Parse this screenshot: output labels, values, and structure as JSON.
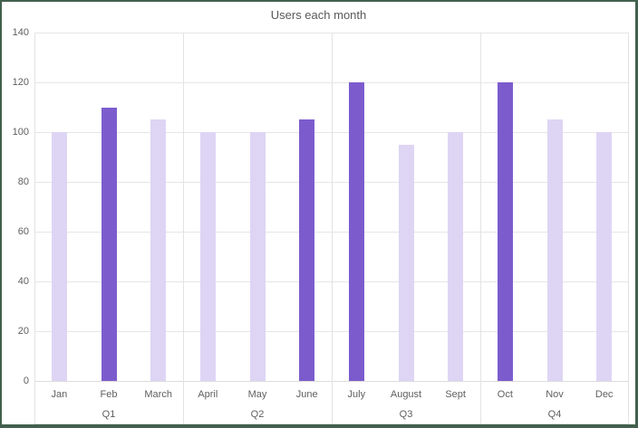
{
  "chart_data": {
    "type": "bar",
    "title": "Users each month",
    "categories": [
      "Jan",
      "Feb",
      "March",
      "April",
      "May",
      "June",
      "July",
      "August",
      "Sept",
      "Oct",
      "Nov",
      "Dec"
    ],
    "group_labels": [
      "Q1",
      "Q2",
      "Q3",
      "Q4"
    ],
    "group_size": 3,
    "values": [
      100,
      110,
      105,
      100,
      100,
      105,
      120,
      95,
      100,
      120,
      105,
      100
    ],
    "emphasized": [
      false,
      true,
      false,
      false,
      false,
      true,
      true,
      false,
      false,
      true,
      false,
      false
    ],
    "ylim": [
      0,
      140
    ],
    "ytick_step": 20,
    "yticks": [
      0,
      20,
      40,
      60,
      80,
      100,
      120,
      140
    ],
    "xlabel": "",
    "ylabel": "",
    "grid": true,
    "legend": "none",
    "colors": {
      "bar_default": "#ded5f4",
      "bar_emphasis": "#7c5ccd",
      "gridline": "#e6e6e6",
      "axis_text": "#5f5f5f",
      "title_text": "#595959",
      "frame": "#42604d",
      "background": "#ffffff"
    }
  }
}
